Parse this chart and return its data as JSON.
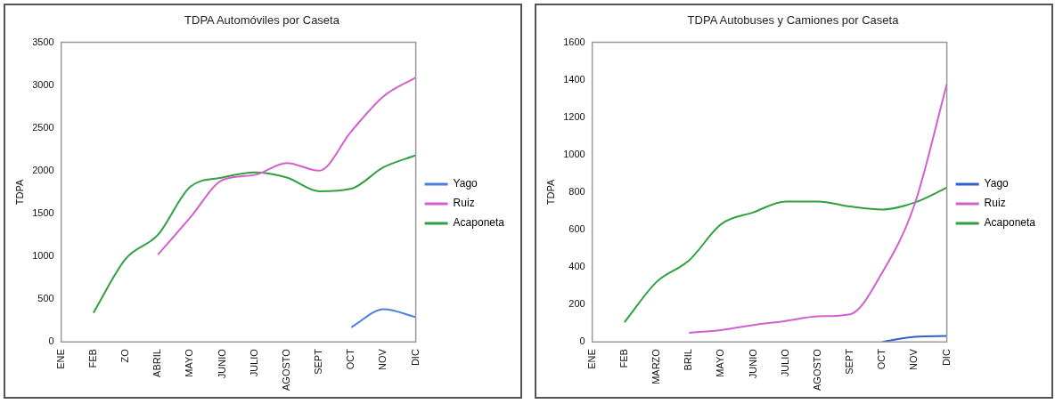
{
  "chart_data": [
    {
      "type": "line",
      "title": "TDPA Automóviles por Caseta",
      "ylabel": "TDPA",
      "categories": [
        "ENE",
        "FEB",
        "ZO",
        "ABRIL",
        "MAYO",
        "JUNIO",
        "JULIO",
        "AGOSTO",
        "SEPT",
        "OCT",
        "NOV",
        "DIC"
      ],
      "series": [
        {
          "name": "Yago",
          "color": "#4a7fe0",
          "values": [
            null,
            null,
            null,
            null,
            null,
            null,
            null,
            null,
            null,
            170,
            380,
            290
          ]
        },
        {
          "name": "Ruiz",
          "color": "#d060d0",
          "values": [
            null,
            null,
            null,
            1020,
            1450,
            1890,
            1950,
            2090,
            2000,
            2460,
            2870,
            3090
          ]
        },
        {
          "name": "Acaponeta",
          "color": "#30a040",
          "values": [
            null,
            340,
            970,
            1250,
            1810,
            1920,
            1980,
            1920,
            1760,
            1790,
            2040,
            2180
          ]
        }
      ],
      "ylim": [
        0,
        3500
      ],
      "yticks": [
        0,
        500,
        1000,
        1500,
        2000,
        2500,
        3000,
        3500
      ],
      "grid": false,
      "legend": "right",
      "marker": "none"
    },
    {
      "type": "line",
      "title": "TDPA Autobuses y Camiones por Caseta",
      "ylabel": "TDPA",
      "categories": [
        "ENE",
        "FEB",
        "MARZO",
        "BRIL",
        "MAYO",
        "JUNIO",
        "JULIO",
        "AGOSTO",
        "SEPT",
        "OCT",
        "NOV",
        "DIC"
      ],
      "series": [
        {
          "name": "Yago",
          "color": "#3060d0",
          "values": [
            null,
            null,
            null,
            null,
            null,
            null,
            null,
            null,
            null,
            0,
            27,
            31
          ]
        },
        {
          "name": "Ruiz",
          "color": "#d060d0",
          "values": [
            null,
            null,
            null,
            48,
            63,
            90,
            111,
            136,
            147,
            371,
            734,
            1377
          ]
        },
        {
          "name": "Acaponeta",
          "color": "#30a040",
          "values": [
            null,
            105,
            321,
            434,
            629,
            692,
            750,
            750,
            723,
            707,
            744,
            824
          ]
        }
      ],
      "ylim": [
        0,
        1600
      ],
      "yticks": [
        0,
        200,
        400,
        600,
        800,
        1000,
        1200,
        1400,
        1600
      ],
      "grid": false,
      "legend": "right",
      "marker": "none"
    }
  ]
}
